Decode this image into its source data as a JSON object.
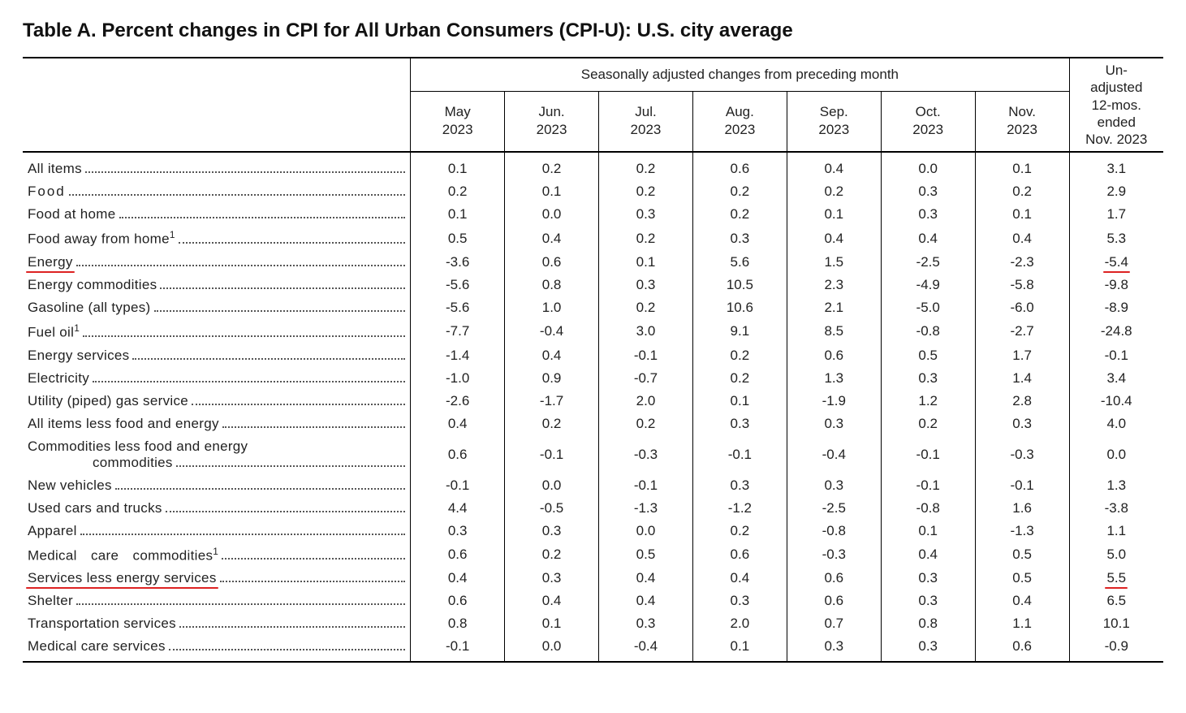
{
  "title": "Table A. Percent changes in CPI for All Urban Consumers (CPI-U): U.S. city average",
  "header": {
    "spanner": "Seasonally adjusted changes from preceding month",
    "unadjusted": "Un-\nadjusted\n12-mos.\nended\nNov. 2023",
    "months": [
      "May\n2023",
      "Jun.\n2023",
      "Jul.\n2023",
      "Aug.\n2023",
      "Sep.\n2023",
      "Oct.\n2023",
      "Nov.\n2023"
    ]
  },
  "columns": [
    "may",
    "jun",
    "jul",
    "aug",
    "sep",
    "oct",
    "nov",
    "yoy"
  ],
  "rows": [
    {
      "label": "All items",
      "indent": 0,
      "sup": "",
      "may": "0.1",
      "jun": "0.2",
      "jul": "0.2",
      "aug": "0.6",
      "sep": "0.4",
      "oct": "0.0",
      "nov": "0.1",
      "yoy": "3.1"
    },
    {
      "label": "Food",
      "indent": 1,
      "sup": "",
      "letterspace": "2px",
      "may": "0.2",
      "jun": "0.1",
      "jul": "0.2",
      "aug": "0.2",
      "sep": "0.2",
      "oct": "0.3",
      "nov": "0.2",
      "yoy": "2.9"
    },
    {
      "label": "Food at home",
      "indent": 2,
      "sup": "",
      "may": "0.1",
      "jun": "0.0",
      "jul": "0.3",
      "aug": "0.2",
      "sep": "0.1",
      "oct": "0.3",
      "nov": "0.1",
      "yoy": "1.7"
    },
    {
      "label": "Food away from home",
      "indent": 2,
      "sup": "1",
      "may": "0.5",
      "jun": "0.4",
      "jul": "0.2",
      "aug": "0.3",
      "sep": "0.4",
      "oct": "0.4",
      "nov": "0.4",
      "yoy": "5.3"
    },
    {
      "label": "Energy",
      "indent": 1,
      "sup": "",
      "annot_label": true,
      "may": "-3.6",
      "jun": "0.6",
      "jul": "0.1",
      "aug": "5.6",
      "sep": "1.5",
      "oct": "-2.5",
      "nov": "-2.3",
      "yoy": "-5.4",
      "annot_yoy": true
    },
    {
      "label": "Energy commodities",
      "indent": 2,
      "sup": "",
      "may": "-5.6",
      "jun": "0.8",
      "jul": "0.3",
      "aug": "10.5",
      "sep": "2.3",
      "oct": "-4.9",
      "nov": "-5.8",
      "yoy": "-9.8"
    },
    {
      "label": "Gasoline (all types)",
      "indent": 3,
      "sup": "",
      "may": "-5.6",
      "jun": "1.0",
      "jul": "0.2",
      "aug": "10.6",
      "sep": "2.1",
      "oct": "-5.0",
      "nov": "-6.0",
      "yoy": "-8.9"
    },
    {
      "label": "Fuel oil",
      "indent": 3,
      "sup": "1",
      "may": "-7.7",
      "jun": "-0.4",
      "jul": "3.0",
      "aug": "9.1",
      "sep": "8.5",
      "oct": "-0.8",
      "nov": "-2.7",
      "yoy": "-24.8"
    },
    {
      "label": "Energy services",
      "indent": 2,
      "sup": "",
      "may": "-1.4",
      "jun": "0.4",
      "jul": "-0.1",
      "aug": "0.2",
      "sep": "0.6",
      "oct": "0.5",
      "nov": "1.7",
      "yoy": "-0.1"
    },
    {
      "label": "Electricity",
      "indent": 3,
      "sup": "",
      "may": "-1.0",
      "jun": "0.9",
      "jul": "-0.7",
      "aug": "0.2",
      "sep": "1.3",
      "oct": "0.3",
      "nov": "1.4",
      "yoy": "3.4"
    },
    {
      "label": "Utility (piped) gas service",
      "indent": 3,
      "sup": "",
      "may": "-2.6",
      "jun": "-1.7",
      "jul": "2.0",
      "aug": "0.1",
      "sep": "-1.9",
      "oct": "1.2",
      "nov": "2.8",
      "yoy": "-10.4"
    },
    {
      "label": "All items less food and energy",
      "indent": 0,
      "sup": "",
      "may": "0.4",
      "jun": "0.2",
      "jul": "0.2",
      "aug": "0.3",
      "sep": "0.3",
      "oct": "0.2",
      "nov": "0.3",
      "yoy": "4.0"
    },
    {
      "label": "Commodities less food and energy",
      "indent": 1,
      "sup": "",
      "wrap_second": "commodities",
      "may": "0.6",
      "jun": "-0.1",
      "jul": "-0.3",
      "aug": "-0.1",
      "sep": "-0.4",
      "oct": "-0.1",
      "nov": "-0.3",
      "yoy": "0.0"
    },
    {
      "label": "New vehicles",
      "indent": 2,
      "sup": "",
      "may": "-0.1",
      "jun": "0.0",
      "jul": "-0.1",
      "aug": "0.3",
      "sep": "0.3",
      "oct": "-0.1",
      "nov": "-0.1",
      "yoy": "1.3"
    },
    {
      "label": "Used cars and trucks",
      "indent": 2,
      "sup": "",
      "may": "4.4",
      "jun": "-0.5",
      "jul": "-1.3",
      "aug": "-1.2",
      "sep": "-2.5",
      "oct": "-0.8",
      "nov": "1.6",
      "yoy": "-3.8"
    },
    {
      "label": "Apparel",
      "indent": 2,
      "sup": "",
      "may": "0.3",
      "jun": "0.3",
      "jul": "0.0",
      "aug": "0.2",
      "sep": "-0.8",
      "oct": "0.1",
      "nov": "-1.3",
      "yoy": "1.1"
    },
    {
      "label": "Medical care commodities",
      "indent": 2,
      "sup": "1",
      "may": "0.6",
      "jun": "0.2",
      "jul": "0.5",
      "aug": "0.6",
      "sep": "-0.3",
      "oct": "0.4",
      "nov": "0.5",
      "yoy": "5.0"
    },
    {
      "label": "Services less energy services",
      "indent": 1,
      "sup": "",
      "annot_label": true,
      "may": "0.4",
      "jun": "0.3",
      "jul": "0.4",
      "aug": "0.4",
      "sep": "0.6",
      "oct": "0.3",
      "nov": "0.5",
      "yoy": "5.5",
      "annot_yoy": true
    },
    {
      "label": "Shelter",
      "indent": 2,
      "sup": "",
      "may": "0.6",
      "jun": "0.4",
      "jul": "0.4",
      "aug": "0.3",
      "sep": "0.6",
      "oct": "0.3",
      "nov": "0.4",
      "yoy": "6.5"
    },
    {
      "label": "Transportation services",
      "indent": 2,
      "sup": "",
      "may": "0.8",
      "jun": "0.1",
      "jul": "0.3",
      "aug": "2.0",
      "sep": "0.7",
      "oct": "0.8",
      "nov": "1.1",
      "yoy": "10.1"
    },
    {
      "label": "Medical care services",
      "indent": 2,
      "sup": "",
      "may": "-0.1",
      "jun": "0.0",
      "jul": "-0.4",
      "aug": "0.1",
      "sep": "0.3",
      "oct": "0.3",
      "nov": "0.6",
      "yoy": "-0.9"
    }
  ],
  "style": {
    "annot_color": "#d22",
    "label_col_width_pct": 34,
    "num_col_width_pct": 8.25
  }
}
